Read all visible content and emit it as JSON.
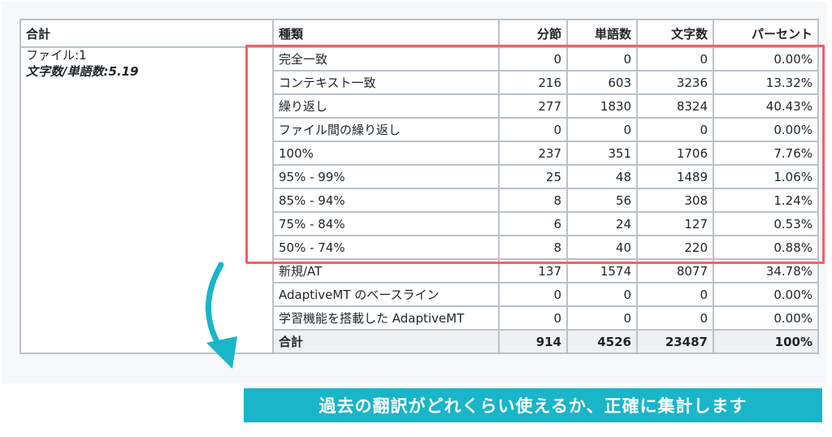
{
  "table": {
    "headers": [
      "合計",
      "種類",
      "分節",
      "単語数",
      "文字数",
      "パーセント"
    ],
    "summary": [
      "ファイル:1",
      "文字数/単語数:5.19"
    ],
    "rows": [
      {
        "type": "完全一致",
        "segments": "0",
        "words": "0",
        "chars": "0",
        "percent": "0.00%"
      },
      {
        "type": "コンテキスト一致",
        "segments": "216",
        "words": "603",
        "chars": "3236",
        "percent": "13.32%"
      },
      {
        "type": "繰り返し",
        "segments": "277",
        "words": "1830",
        "chars": "8324",
        "percent": "40.43%"
      },
      {
        "type": "ファイル間の繰り返し",
        "segments": "0",
        "words": "0",
        "chars": "0",
        "percent": "0.00%"
      },
      {
        "type": "100%",
        "segments": "237",
        "words": "351",
        "chars": "1706",
        "percent": "7.76%"
      },
      {
        "type": "95% - 99%",
        "segments": "25",
        "words": "48",
        "chars": "1489",
        "percent": "1.06%"
      },
      {
        "type": "85% - 94%",
        "segments": "8",
        "words": "56",
        "chars": "308",
        "percent": "1.24%"
      },
      {
        "type": "75% - 84%",
        "segments": "6",
        "words": "24",
        "chars": "127",
        "percent": "0.53%"
      },
      {
        "type": "50% - 74%",
        "segments": "8",
        "words": "40",
        "chars": "220",
        "percent": "0.88%"
      },
      {
        "type": "新規/AT",
        "segments": "137",
        "words": "1574",
        "chars": "8077",
        "percent": "34.78%"
      },
      {
        "type": "AdaptiveMT のベースライン",
        "segments": "0",
        "words": "0",
        "chars": "0",
        "percent": "0.00%"
      },
      {
        "type": "学習機能を搭載した AdaptiveMT",
        "segments": "0",
        "words": "0",
        "chars": "0",
        "percent": "0.00%"
      }
    ],
    "total": {
      "type": "合計",
      "segments": "914",
      "words": "4526",
      "chars": "23487",
      "percent": "100%"
    }
  },
  "caption": "過去の翻訳がどれくらい使えるか、正確に集計します",
  "colors": {
    "highlight": "#f0606a",
    "accent": "#19b5c9",
    "grid": "#b9c2cb"
  }
}
